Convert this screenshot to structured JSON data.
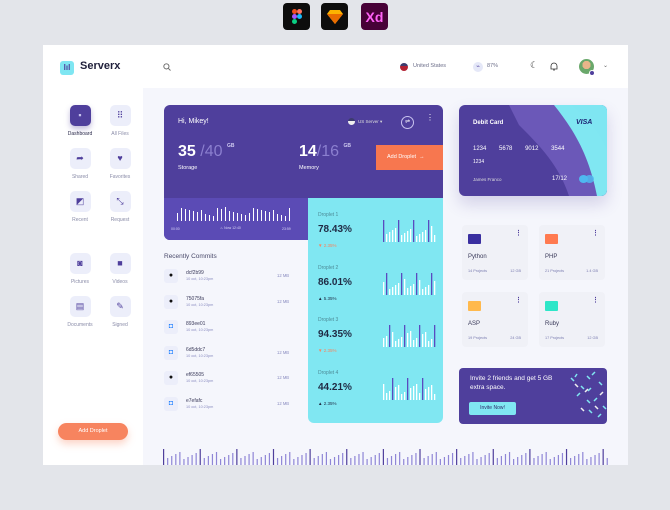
{
  "tools": [
    {
      "name": "figma",
      "label": ""
    },
    {
      "name": "sketch",
      "label": ""
    },
    {
      "name": "xd",
      "label": "Xd"
    }
  ],
  "brand": {
    "name": "Serverx",
    "logo_glyph": "lıl"
  },
  "sidebar": {
    "items": [
      {
        "label": "Dashboard",
        "icon": "dashboard-icon",
        "active": true
      },
      {
        "label": "All Files",
        "icon": "grid-icon"
      },
      {
        "label": "Shared",
        "icon": "share-icon"
      },
      {
        "label": "Favorites",
        "icon": "heart-icon"
      },
      {
        "label": "Recent",
        "icon": "recent-icon"
      },
      {
        "label": "Request",
        "icon": "request-icon"
      },
      {
        "label": "Pictures",
        "icon": "camera-icon"
      },
      {
        "label": "Videos",
        "icon": "video-icon"
      },
      {
        "label": "Documents",
        "icon": "document-icon"
      },
      {
        "label": "Signed",
        "icon": "signed-icon"
      }
    ],
    "cta": "Add Droplet"
  },
  "header": {
    "country": "United States",
    "usage": "87%"
  },
  "hello": {
    "greeting": "Hi, Mikey!",
    "server": "US Server",
    "storage": {
      "used": "35",
      "total": "/40",
      "unit": "GB",
      "label": "Storage"
    },
    "memory": {
      "used": "14",
      "total": "/16",
      "unit": "GB",
      "label": "Memory"
    },
    "add_label": "Add Droplet",
    "time_start": "00:00",
    "time_now": "Now 12:40",
    "time_end": "23:59"
  },
  "droplets": [
    {
      "name": "Droplet 1",
      "value": "78.43%",
      "change": "2.35%",
      "dir": "down"
    },
    {
      "name": "Droplet 2",
      "value": "86.01%",
      "change": "5.35%",
      "dir": "up"
    },
    {
      "name": "Droplet 3",
      "value": "94.35%",
      "change": "2.35%",
      "dir": "down"
    },
    {
      "name": "Droplet 4",
      "value": "44.21%",
      "change": "2.35%",
      "dir": "up"
    }
  ],
  "commits": {
    "title": "Recently Commits",
    "items": [
      {
        "hash": "dcf2b99",
        "date": "10 oct, 10:23pm",
        "size": "12 MB",
        "source": "github"
      },
      {
        "hash": "75075fa",
        "date": "10 oct, 10:23pm",
        "size": "12 MB",
        "source": "github"
      },
      {
        "hash": "893ee01",
        "date": "10 oct, 10:23pm",
        "size": "",
        "source": "bitbucket"
      },
      {
        "hash": "6d5ddc7",
        "date": "10 oct, 10:23pm",
        "size": "12 MB",
        "source": "bitbucket"
      },
      {
        "hash": "ef65505",
        "date": "10 oct, 10:23pm",
        "size": "12 MB",
        "source": "github"
      },
      {
        "hash": "e7efafc",
        "date": "10 oct, 10:23pm",
        "size": "12 MB",
        "source": "bitbucket"
      }
    ]
  },
  "card": {
    "title": "Debit Card",
    "brand": "VISA",
    "number": [
      "1234",
      "5678",
      "9012",
      "3544",
      "1234"
    ],
    "holder": "James Franco",
    "expiry": "17/12"
  },
  "folders": [
    {
      "name": "Python",
      "projects": "14 Projects",
      "size": "12 GB",
      "color": "#3a2fa0"
    },
    {
      "name": "PHP",
      "projects": "21 Projects",
      "size": "1.4 GB",
      "color": "#ff7a50"
    },
    {
      "name": "ASP",
      "projects": "19 Projects",
      "size": "24 GB",
      "color": "#ffb94d"
    },
    {
      "name": "Ruby",
      "projects": "17 Projects",
      "size": "12 GB",
      "color": "#2ee6c8"
    }
  ],
  "invite": {
    "text": "Invite 2 friends and get 5 GB extra space.",
    "button": "Invite Now!"
  },
  "colors": {
    "primary": "#4f3f9c",
    "accent": "#80e7f2",
    "orange": "#f7845f"
  }
}
